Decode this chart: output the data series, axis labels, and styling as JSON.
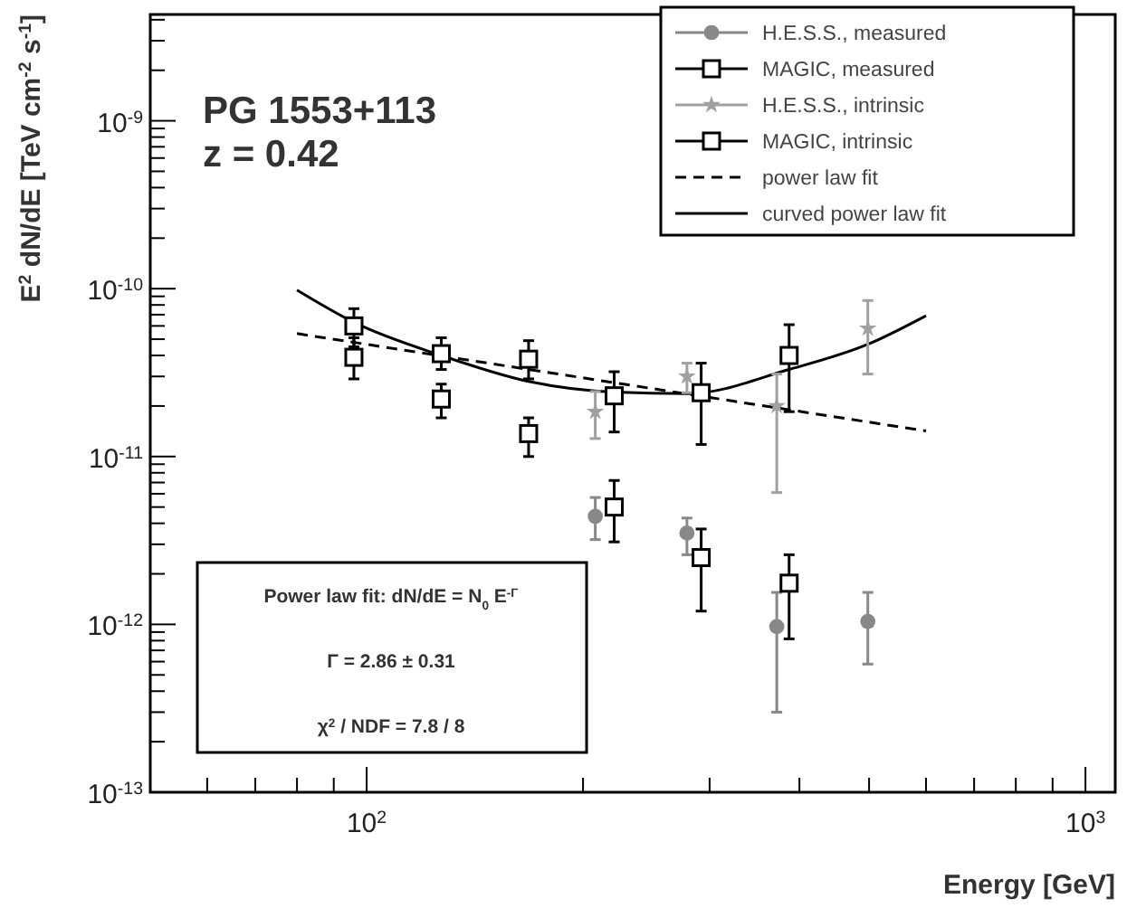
{
  "chart_data": {
    "type": "scatter",
    "title": "PG 1553+113",
    "subtitle": "z = 0.42",
    "xlabel": "Energy [GeV]",
    "ylabel": "E$^{2}$ dN/dE [TeV cm$^{-2}$ s$^{-1}$]",
    "annotations": [
      "Power law fit: dN/dE = N$_{0}$ E$^{-Γ}$",
      "Γ = 2.86 ± 0.31",
      "χ$^{2}$ / NDF = 7.8 / 8"
    ],
    "log": "xy",
    "legend": "top right",
    "xlim": [
      50,
      1100
    ],
    "xticks": [
      {
        "value": 60,
        "label": null
      },
      {
        "value": 70,
        "label": null
      },
      {
        "value": 80,
        "label": null
      },
      {
        "value": 90,
        "label": null
      },
      {
        "value": 100,
        "label": "10$^{2}$"
      },
      {
        "value": 200,
        "label": null
      },
      {
        "value": 300,
        "label": null
      },
      {
        "value": 400,
        "label": null
      },
      {
        "value": 500,
        "label": null
      },
      {
        "value": 600,
        "label": null
      },
      {
        "value": 700,
        "label": null
      },
      {
        "value": 800,
        "label": null
      },
      {
        "value": 900,
        "label": null
      },
      {
        "value": 1000,
        "label": "10$^{3}$"
      }
    ],
    "ylim": [
      1e-13,
      4.3e-09
    ],
    "yticks": [
      {
        "value": 1e-13,
        "label": "10$^{-13}$"
      },
      {
        "value": 2e-13,
        "label": null
      },
      {
        "value": 3e-13,
        "label": null
      },
      {
        "value": 4e-13,
        "label": null
      },
      {
        "value": 5e-13,
        "label": null
      },
      {
        "value": 6e-13,
        "label": null
      },
      {
        "value": 7e-13,
        "label": null
      },
      {
        "value": 8e-13,
        "label": null
      },
      {
        "value": 9e-13,
        "label": null
      },
      {
        "value": 1e-12,
        "label": "10$^{-12}$"
      },
      {
        "value": 2e-12,
        "label": null
      },
      {
        "value": 3e-12,
        "label": null
      },
      {
        "value": 4e-12,
        "label": null
      },
      {
        "value": 5e-12,
        "label": null
      },
      {
        "value": 6e-12,
        "label": null
      },
      {
        "value": 7e-12,
        "label": null
      },
      {
        "value": 8e-12,
        "label": null
      },
      {
        "value": 9e-12,
        "label": null
      },
      {
        "value": 1e-11,
        "label": "10$^{-11}$"
      },
      {
        "value": 2e-11,
        "label": null
      },
      {
        "value": 3e-11,
        "label": null
      },
      {
        "value": 4e-11,
        "label": null
      },
      {
        "value": 5e-11,
        "label": null
      },
      {
        "value": 6e-11,
        "label": null
      },
      {
        "value": 7e-11,
        "label": null
      },
      {
        "value": 8e-11,
        "label": null
      },
      {
        "value": 9e-11,
        "label": null
      },
      {
        "value": 1e-10,
        "label": "10$^{-10}$"
      },
      {
        "value": 2e-10,
        "label": null
      },
      {
        "value": 3e-10,
        "label": null
      },
      {
        "value": 4e-10,
        "label": null
      },
      {
        "value": 5e-10,
        "label": null
      },
      {
        "value": 6e-10,
        "label": null
      },
      {
        "value": 7e-10,
        "label": null
      },
      {
        "value": 8e-10,
        "label": null
      },
      {
        "value": 9e-10,
        "label": null
      },
      {
        "value": 1e-09,
        "label": "10$^{-9}$"
      },
      {
        "value": 2e-09,
        "label": null
      },
      {
        "value": 3e-09,
        "label": null
      },
      {
        "value": 4e-09,
        "label": null
      }
    ],
    "series": [
      {
        "name": "H.E.S.S., measured",
        "marker": "circle",
        "color": "#888888",
        "x": [
          208,
          279,
          372,
          498
        ],
        "values": [
          4.4e-12,
          3.5e-12,
          9.7e-13,
          1.04e-12
        ],
        "errors": [
          [
            3.2e-12,
            5.7e-12
          ],
          [
            2.6e-12,
            4.3e-12
          ],
          [
            3e-13,
            1.55e-12
          ],
          [
            5.8e-13,
            1.55e-12
          ]
        ]
      },
      {
        "name": "MAGIC, measured",
        "marker": "square",
        "color": "#000000",
        "x": [
          96,
          127,
          168,
          221,
          292,
          387
        ],
        "values": [
          3.9e-11,
          2.2e-11,
          1.37e-11,
          5e-12,
          2.5e-12,
          1.76e-12
        ],
        "errors": [
          [
            2.9e-11,
            5.1e-11
          ],
          [
            1.7e-11,
            2.7e-11
          ],
          [
            1e-11,
            1.7e-11
          ],
          [
            3.1e-12,
            7.2e-12
          ],
          [
            1.2e-12,
            3.7e-12
          ],
          [
            8.2e-13,
            2.6e-12
          ]
        ]
      },
      {
        "name": "H.E.S.S., intrinsic",
        "marker": "star",
        "color": "#a0a0a0",
        "x": [
          208,
          279,
          372,
          498
        ],
        "values": [
          1.85e-11,
          3e-11,
          2e-11,
          5.8e-11
        ],
        "errors": [
          [
            1.28e-11,
            2.44e-11
          ],
          [
            2.4e-11,
            3.6e-11
          ],
          [
            6.1e-12,
            3.1e-11
          ],
          [
            3.1e-11,
            8.5e-11
          ]
        ]
      },
      {
        "name": "MAGIC, intrinsic",
        "marker": "square",
        "color": "#000000",
        "x": [
          96,
          127,
          168,
          221,
          292,
          387
        ],
        "values": [
          6e-11,
          4.1e-11,
          3.8e-11,
          2.3e-11,
          2.4e-11,
          4e-11
        ],
        "errors": [
          [
            4.5e-11,
            7.6e-11
          ],
          [
            3.3e-11,
            5.1e-11
          ],
          [
            2.9e-11,
            4.9e-11
          ],
          [
            1.4e-11,
            3.2e-11
          ],
          [
            1.18e-11,
            3.6e-11
          ],
          [
            1.85e-11,
            6.1e-11
          ]
        ]
      },
      {
        "name": "power law fit",
        "type": "line",
        "marker": "none",
        "line_style": "dashed",
        "color": "#000000",
        "x": [
          80,
          600
        ],
        "values": [
          5.4e-11,
          1.42e-11
        ]
      },
      {
        "name": "curved power law fit",
        "type": "line",
        "marker": "none",
        "line_style": "solid",
        "color": "#000000",
        "x": [
          80,
          96,
          127,
          168,
          221,
          280,
          387,
          498,
          600
        ],
        "values": [
          9.8e-11,
          6.3e-11,
          4e-11,
          2.8e-11,
          2.42e-11,
          2.37e-11,
          3.3e-11,
          4.66e-11,
          6.9e-11
        ]
      }
    ]
  }
}
